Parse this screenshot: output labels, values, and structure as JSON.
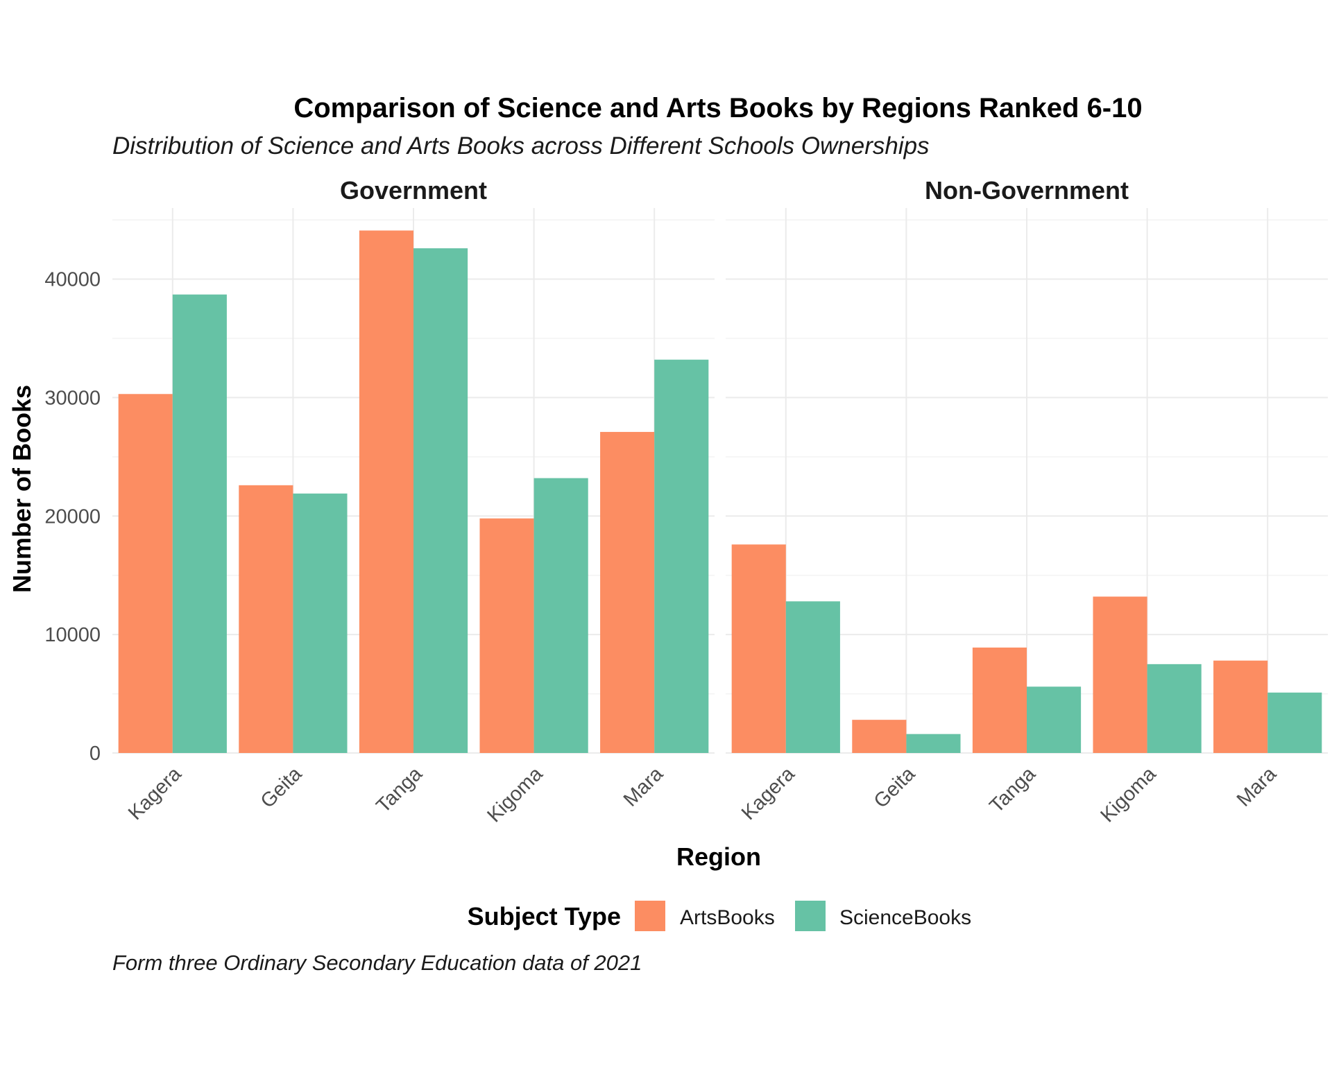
{
  "chart_data": {
    "type": "bar",
    "title": "Comparison of Science and Arts Books by Regions Ranked 6-10",
    "subtitle": "Distribution of Science and Arts Books across Different Schools Ownerships",
    "caption": "Form three Ordinary Secondary Education data of 2021",
    "xlabel": "Region",
    "ylabel": "Number of Books",
    "categories": [
      "Kagera",
      "Geita",
      "Tanga",
      "Kigoma",
      "Mara"
    ],
    "ylim": [
      0,
      46000
    ],
    "yticks": [
      0,
      10000,
      20000,
      30000,
      40000
    ],
    "grid": true,
    "legend": {
      "title": "Subject Type",
      "position": "bottom",
      "entries": [
        {
          "name": "ArtsBooks",
          "color": "#fc8d62"
        },
        {
          "name": "ScienceBooks",
          "color": "#66c2a5"
        }
      ]
    },
    "facets": [
      {
        "label": "Government",
        "series": [
          {
            "name": "ArtsBooks",
            "values": [
              30300,
              22600,
              44100,
              19800,
              27100
            ]
          },
          {
            "name": "ScienceBooks",
            "values": [
              38700,
              21900,
              42600,
              23200,
              33200
            ]
          }
        ]
      },
      {
        "label": "Non-Government",
        "series": [
          {
            "name": "ArtsBooks",
            "values": [
              17600,
              2800,
              8900,
              13200,
              7800
            ]
          },
          {
            "name": "ScienceBooks",
            "values": [
              12800,
              1600,
              5600,
              7500,
              5100
            ]
          }
        ]
      }
    ]
  }
}
